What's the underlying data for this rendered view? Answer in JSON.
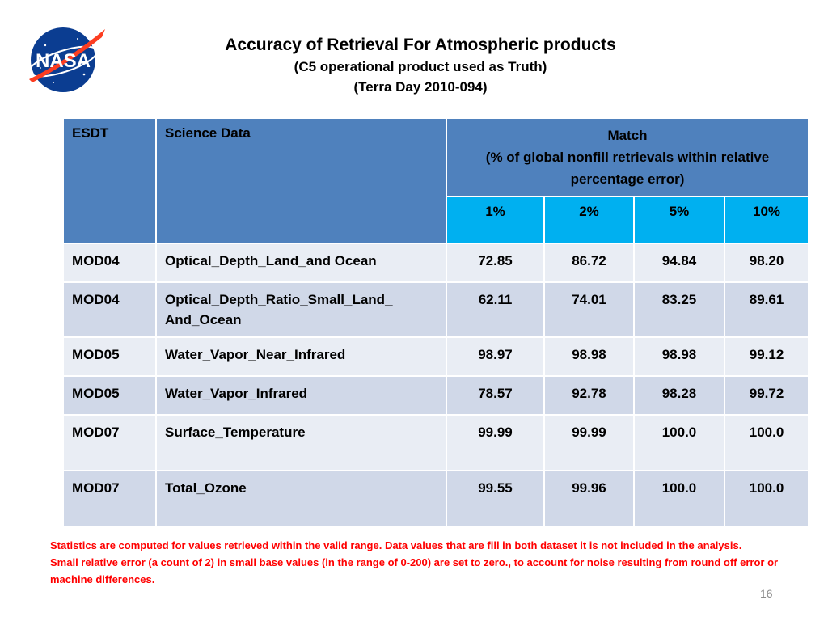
{
  "logo": {
    "text": "NASA"
  },
  "title": "Accuracy of Retrieval For Atmospheric products",
  "subtitle1": "(C5 operational product used as Truth)",
  "subtitle2": "(Terra Day 2010-094)",
  "table": {
    "headers": {
      "esdt": "ESDT",
      "science": "Science Data",
      "match_line1": "Match",
      "match_line2": "(% of global nonfill retrievals within relative percentage error)",
      "pcts": [
        "1%",
        "2%",
        "5%",
        "10%"
      ]
    },
    "rows": [
      {
        "esdt": "MOD04",
        "science": "Optical_Depth_Land_and Ocean",
        "values": [
          "72.85",
          "86.72",
          "94.84",
          "98.20"
        ]
      },
      {
        "esdt": "MOD04",
        "science": "Optical_Depth_Ratio_Small_Land_ And_Ocean",
        "values": [
          "62.11",
          "74.01",
          "83.25",
          "89.61"
        ]
      },
      {
        "esdt": "MOD05",
        "science": "Water_Vapor_Near_Infrared",
        "values": [
          "98.97",
          "98.98",
          "98.98",
          "99.12"
        ]
      },
      {
        "esdt": "MOD05",
        "science": "Water_Vapor_Infrared",
        "values": [
          "78.57",
          "92.78",
          "98.28",
          "99.72"
        ]
      },
      {
        "esdt": "MOD07",
        "science": "Surface_Temperature",
        "values": [
          "99.99",
          "99.99",
          "100.0",
          "100.0"
        ]
      },
      {
        "esdt": "MOD07",
        "science": "Total_Ozone",
        "values": [
          "99.55",
          "99.96",
          "100.0",
          "100.0"
        ]
      }
    ]
  },
  "notes": [
    "Statistics are computed for values retrieved within the valid range. Data values that are fill in both dataset it is not included in the analysis.",
    "Small relative error (a count of 2)  in small base values (in the range of 0-200) are set to zero., to account for noise resulting from round off error or machine differences."
  ],
  "page_number": "16",
  "colors": {
    "header": "#4f81bd",
    "pct_header": "#00b0f0",
    "row_light": "#e9edf4",
    "row_dark": "#d0d8e8",
    "note": "#ff0000"
  }
}
